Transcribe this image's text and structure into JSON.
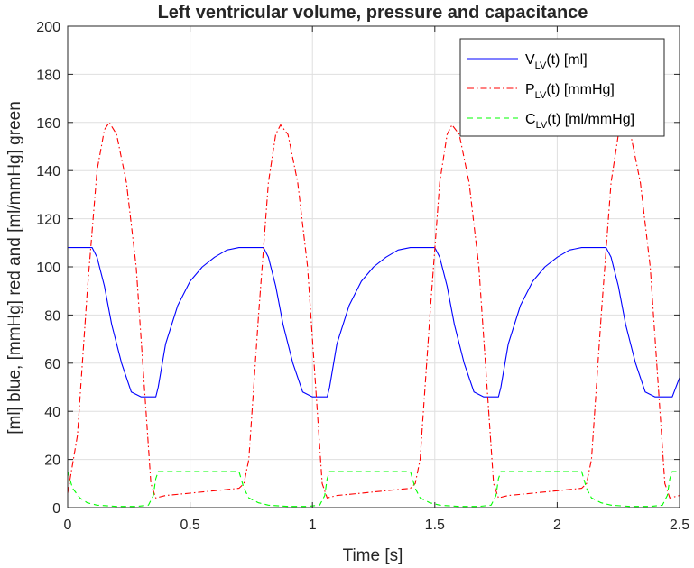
{
  "chart_data": {
    "type": "line",
    "title": "Left ventricular volume, pressure and capacitance",
    "xlabel": "Time [s]",
    "ylabel": "[ml] blue, [mmHg] red and [ml/mmHg] green",
    "xlim": [
      0,
      2.5
    ],
    "ylim": [
      0,
      200
    ],
    "xticks": [
      0,
      0.5,
      1,
      1.5,
      2,
      2.5
    ],
    "xtick_labels": [
      "0",
      "0.5",
      "1",
      "1.5",
      "2",
      "2.5"
    ],
    "yticks": [
      0,
      20,
      40,
      60,
      80,
      100,
      120,
      140,
      160,
      180,
      200
    ],
    "ytick_labels": [
      "0",
      "20",
      "40",
      "60",
      "80",
      "100",
      "120",
      "140",
      "160",
      "180",
      "200"
    ],
    "grid": true,
    "legend_position": "top-right",
    "series": [
      {
        "name": "V_LV(t) [ml]",
        "label_main": "V",
        "label_sub": "LV",
        "label_rest": "(t) [ml]",
        "color": "#0000ff",
        "style": "solid",
        "x": [
          0,
          0.05,
          0.1,
          0.12,
          0.15,
          0.18,
          0.22,
          0.26,
          0.3,
          0.33,
          0.36,
          0.37,
          0.4,
          0.45,
          0.5,
          0.55,
          0.6,
          0.65,
          0.7,
          0.71,
          0.75,
          0.8,
          0.82,
          0.85,
          0.88,
          0.92,
          0.96,
          1.0,
          1.03,
          1.06,
          1.07,
          1.1,
          1.15,
          1.2,
          1.25,
          1.3,
          1.35,
          1.4,
          1.41,
          1.45,
          1.5,
          1.52,
          1.55,
          1.58,
          1.62,
          1.66,
          1.7,
          1.73,
          1.76,
          1.77,
          1.8,
          1.85,
          1.9,
          1.95,
          2.0,
          2.05,
          2.1,
          2.11,
          2.15,
          2.2,
          2.22,
          2.25,
          2.28,
          2.32,
          2.36,
          2.4,
          2.43,
          2.46,
          2.47,
          2.5
        ],
        "y": [
          108,
          108,
          108,
          104,
          92,
          76,
          60,
          48,
          46,
          46,
          46,
          50,
          68,
          84,
          94,
          100,
          104,
          107,
          108,
          108,
          108,
          108,
          104,
          92,
          76,
          60,
          48,
          46,
          46,
          46,
          50,
          68,
          84,
          94,
          100,
          104,
          107,
          108,
          108,
          108,
          108,
          104,
          92,
          76,
          60,
          48,
          46,
          46,
          46,
          50,
          68,
          84,
          94,
          100,
          104,
          107,
          108,
          108,
          108,
          108,
          104,
          92,
          76,
          60,
          48,
          46,
          46,
          46,
          46,
          54
        ]
      },
      {
        "name": "P_LV(t) [mmHg]",
        "label_main": "P",
        "label_sub": "LV",
        "label_rest": "(t) [mmHg]",
        "color": "#ff0000",
        "style": "dashdot",
        "x": [
          0,
          0.04,
          0.08,
          0.12,
          0.15,
          0.17,
          0.2,
          0.24,
          0.28,
          0.32,
          0.34,
          0.36,
          0.4,
          0.5,
          0.6,
          0.7,
          0.72,
          0.74,
          0.78,
          0.82,
          0.85,
          0.87,
          0.9,
          0.94,
          0.98,
          1.02,
          1.04,
          1.06,
          1.1,
          1.2,
          1.3,
          1.4,
          1.42,
          1.44,
          1.48,
          1.52,
          1.55,
          1.57,
          1.6,
          1.64,
          1.68,
          1.72,
          1.74,
          1.76,
          1.8,
          1.9,
          2.0,
          2.1,
          2.12,
          2.14,
          2.18,
          2.22,
          2.25,
          2.27,
          2.3,
          2.34,
          2.38,
          2.42,
          2.44,
          2.46,
          2.5
        ],
        "y": [
          6,
          30,
          90,
          140,
          157,
          160,
          155,
          135,
          100,
          40,
          10,
          4,
          5,
          6,
          7,
          8,
          10,
          20,
          80,
          135,
          155,
          159,
          155,
          135,
          100,
          40,
          10,
          4,
          5,
          6,
          7,
          8,
          10,
          20,
          80,
          135,
          155,
          159,
          155,
          135,
          100,
          40,
          10,
          4,
          5,
          6,
          7,
          8,
          10,
          20,
          80,
          135,
          155,
          159,
          155,
          135,
          100,
          40,
          10,
          4,
          5
        ]
      },
      {
        "name": "C_LV(t) [ml/mmHg]",
        "label_main": "C",
        "label_sub": "LV",
        "label_rest": "(t) [ml/mmHg]",
        "color": "#00ff00",
        "style": "dashed",
        "x": [
          0,
          0.02,
          0.05,
          0.08,
          0.12,
          0.2,
          0.28,
          0.33,
          0.35,
          0.36,
          0.37,
          0.4,
          0.6,
          0.7,
          0.72,
          0.74,
          0.78,
          0.82,
          0.9,
          0.98,
          1.03,
          1.05,
          1.06,
          1.07,
          1.1,
          1.3,
          1.4,
          1.42,
          1.44,
          1.48,
          1.52,
          1.6,
          1.68,
          1.73,
          1.75,
          1.76,
          1.77,
          1.8,
          2.0,
          2.1,
          2.12,
          2.14,
          2.18,
          2.22,
          2.3,
          2.38,
          2.43,
          2.45,
          2.46,
          2.47,
          2.5
        ],
        "y": [
          15,
          8,
          4,
          2,
          1,
          0.5,
          0.5,
          1,
          5,
          12,
          15,
          15,
          15,
          15,
          8,
          4,
          2,
          1,
          0.5,
          0.5,
          1,
          5,
          12,
          15,
          15,
          15,
          15,
          8,
          4,
          2,
          1,
          0.5,
          0.5,
          1,
          5,
          12,
          15,
          15,
          15,
          15,
          8,
          4,
          2,
          1,
          0.5,
          0.5,
          1,
          5,
          12,
          15,
          15
        ]
      }
    ]
  }
}
